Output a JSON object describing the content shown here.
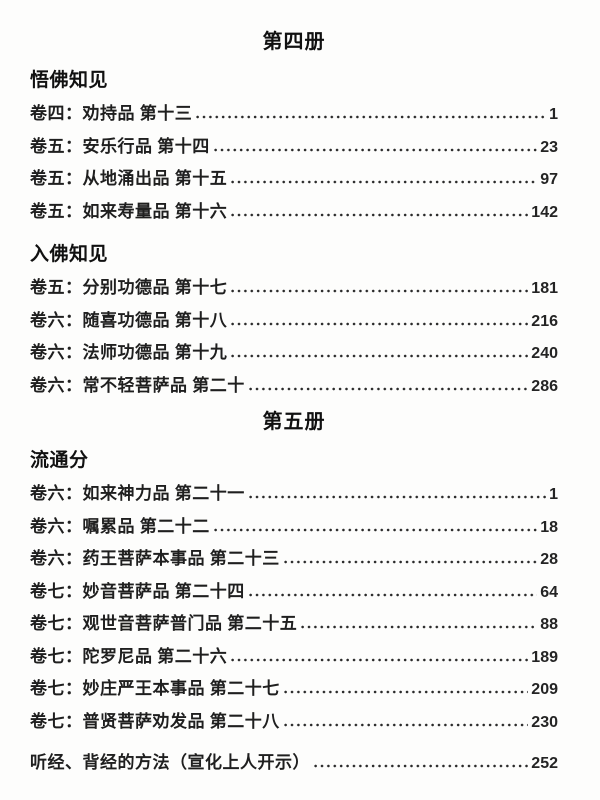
{
  "page": {
    "background": "#fdfdfc",
    "text_color": "#1c1c1c"
  },
  "toc": {
    "volumes": [
      {
        "title": "第四册",
        "groups": [
          {
            "heading": "悟佛知见",
            "entries": [
              {
                "label": "卷四：劝持品 第十三",
                "page": "1"
              },
              {
                "label": "卷五：安乐行品 第十四",
                "page": "23"
              },
              {
                "label": "卷五：从地涌出品 第十五",
                "page": "97"
              },
              {
                "label": "卷五：如来寿量品 第十六",
                "page": "142"
              }
            ]
          },
          {
            "heading": "入佛知见",
            "entries": [
              {
                "label": "卷五：分别功德品 第十七",
                "page": "181"
              },
              {
                "label": "卷六：随喜功德品 第十八",
                "page": "216"
              },
              {
                "label": "卷六：法师功德品 第十九",
                "page": "240"
              },
              {
                "label": "卷六：常不轻菩萨品 第二十",
                "page": "286"
              }
            ]
          }
        ]
      },
      {
        "title": "第五册",
        "groups": [
          {
            "heading": "流通分",
            "entries": [
              {
                "label": "卷六：如来神力品 第二十一",
                "page": "1"
              },
              {
                "label": "卷六：嘱累品 第二十二",
                "page": "18"
              },
              {
                "label": "卷六：药王菩萨本事品 第二十三",
                "page": "28"
              },
              {
                "label": "卷七：妙音菩萨品 第二十四",
                "page": "64"
              },
              {
                "label": "卷七：观世音菩萨普门品 第二十五",
                "page": "88"
              },
              {
                "label": "卷七：陀罗尼品 第二十六",
                "page": "189"
              },
              {
                "label": "卷七：妙庄严王本事品 第二十七",
                "page": "209"
              },
              {
                "label": "卷七：普贤菩萨劝发品 第二十八",
                "page": "230"
              }
            ]
          }
        ]
      }
    ],
    "appendix": {
      "label": "听经、背经的方法（宣化上人开示）",
      "page": "252"
    }
  }
}
